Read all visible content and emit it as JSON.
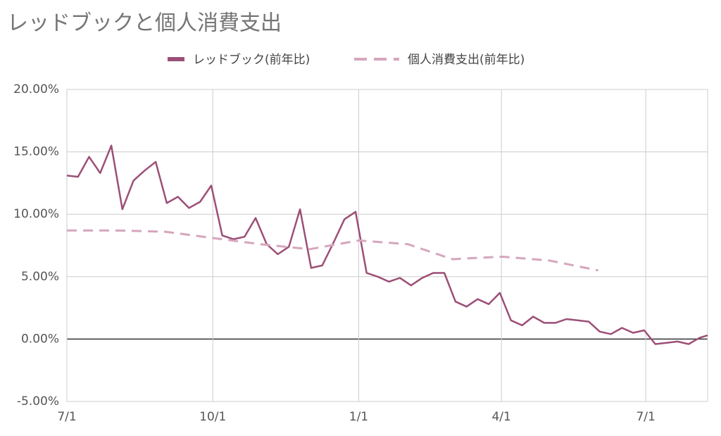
{
  "chart_data": {
    "type": "line",
    "title": "レッドブックと個人消費支出",
    "xlim": [
      0,
      404
    ],
    "xticks": [
      {
        "value": 0,
        "label": "7/1"
      },
      {
        "value": 92,
        "label": "10/1"
      },
      {
        "value": 184,
        "label": "1/1"
      },
      {
        "value": 274,
        "label": "4/1"
      },
      {
        "value": 365,
        "label": "7/1"
      }
    ],
    "ylim": [
      -5,
      20
    ],
    "yticks": [
      {
        "value": -5,
        "label": "-5.00%"
      },
      {
        "value": 0,
        "label": "0.00%"
      },
      {
        "value": 5,
        "label": "5.00%"
      },
      {
        "value": 10,
        "label": "10.00%"
      },
      {
        "value": 15,
        "label": "15.00%"
      },
      {
        "value": 20,
        "label": "20.00%"
      }
    ],
    "grid": true,
    "legend": "top",
    "series": [
      {
        "name": "レッドブック(前年比)",
        "color": "#9c4f76",
        "dash": false,
        "x": [
          0,
          7,
          14,
          21,
          28,
          35,
          42,
          49,
          56,
          63,
          70,
          77,
          84,
          91,
          98,
          105,
          112,
          119,
          126,
          133,
          140,
          147,
          154,
          161,
          168,
          175,
          182,
          189,
          196,
          203,
          210,
          217,
          224,
          231,
          238,
          245,
          252,
          259,
          266,
          273,
          280,
          287,
          294,
          301,
          308,
          315,
          322,
          329,
          336,
          343,
          350,
          357,
          364,
          371,
          378,
          385,
          392,
          399,
          404
        ],
        "values": [
          13.1,
          13.0,
          14.6,
          13.3,
          15.5,
          10.4,
          12.7,
          13.5,
          14.2,
          10.9,
          11.4,
          10.5,
          11.0,
          12.3,
          8.3,
          8.0,
          8.2,
          9.7,
          7.6,
          6.8,
          7.4,
          10.4,
          5.7,
          5.9,
          7.7,
          9.6,
          10.2,
          5.3,
          5.0,
          4.6,
          4.9,
          4.3,
          4.9,
          5.3,
          5.3,
          3.0,
          2.6,
          3.2,
          2.8,
          3.7,
          1.5,
          1.1,
          1.8,
          1.3,
          1.3,
          1.6,
          1.5,
          1.4,
          0.6,
          0.4,
          0.9,
          0.5,
          0.7,
          -0.4,
          -0.3,
          -0.2,
          -0.4,
          0.1,
          0.3
        ]
      },
      {
        "name": "個人消費支出(前年比)",
        "color": "#d5a6bd",
        "dash": true,
        "x": [
          0,
          31,
          62,
          92,
          122,
          153,
          184,
          215,
          243,
          274,
          304,
          335
        ],
        "values": [
          8.7,
          8.7,
          8.6,
          8.1,
          7.6,
          7.2,
          7.9,
          7.6,
          6.4,
          6.6,
          6.3,
          5.5
        ]
      }
    ]
  }
}
